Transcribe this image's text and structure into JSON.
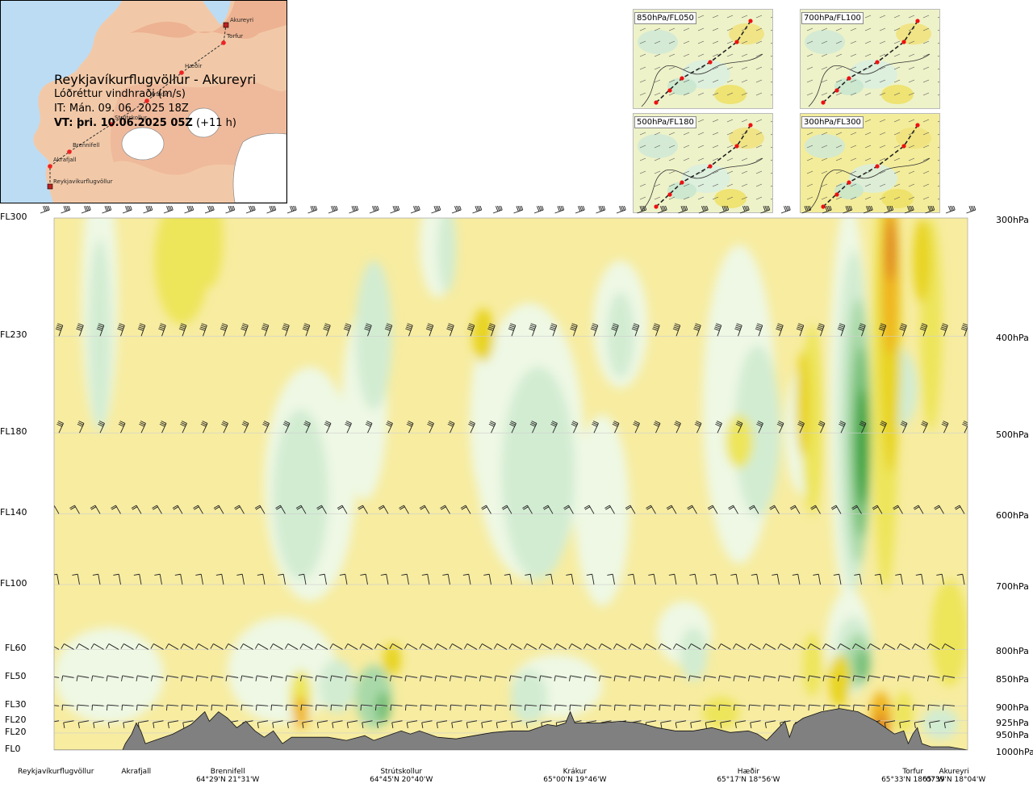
{
  "header": {
    "route_title": "Reykjavíkurflugvöllur - Akureyri",
    "field_title": "Lóðréttur vindhraði (m/s)",
    "init_time": "IT: Mán. 09. 06. 2025 18Z",
    "valid_prefix": "VT: þri. 10.06.2025 05Z",
    "valid_suffix": "(+11 h)"
  },
  "route_map": {
    "waypoints": [
      "Akureyri",
      "Torfur",
      "Hæðir",
      "Krákur",
      "Strútskollur",
      "Brennifell",
      "Akrafjall",
      "Reykjavíkurflugvöllur"
    ]
  },
  "level_maps": [
    {
      "label": "850hPa/FL050"
    },
    {
      "label": "700hPa/FL100"
    },
    {
      "label": "500hPa/FL180"
    },
    {
      "label": "300hPa/FL300"
    }
  ],
  "colors": {
    "yellow_light": "#f7eca0",
    "yellow": "#ede55a",
    "yellow_strong": "#e8d420",
    "orange": "#f0b520",
    "orange_dark": "#e08a25",
    "green_pale": "#eef8e4",
    "green_light": "#d2ecd2",
    "green": "#a9d9a8",
    "green_mid": "#77c078",
    "green_dark": "#3ea33c",
    "terrain": "#808080",
    "map_land": "#f2c9a8",
    "map_sea": "#bcdcf4"
  },
  "chart_data": {
    "type": "heatmap",
    "title": "Lóðréttur vindhraði (m/s)",
    "xlabel": "Reykjavíkurflugvöllur - Akureyri",
    "ylabel": "",
    "flight_levels": [
      "FL300",
      "FL230",
      "FL180",
      "FL140",
      "FL100",
      "FL60",
      "FL50",
      "FL30",
      "FL20",
      "FL20",
      "FL0"
    ],
    "pressure_levels": [
      "300hPa",
      "400hPa",
      "500hPa",
      "600hPa",
      "700hPa",
      "800hPa",
      "850hPa",
      "900hPa",
      "925hPa",
      "950hPa",
      "1000hPa"
    ],
    "level_fraction": [
      0.0,
      0.222,
      0.404,
      0.556,
      0.689,
      0.811,
      0.864,
      0.917,
      0.945,
      0.968,
      1.0
    ],
    "stations": [
      {
        "name": "Reykjavíkurflugvöllur",
        "coord": "",
        "dist": 0.0
      },
      {
        "name": "Akrafjall",
        "coord": "",
        "dist": 0.09
      },
      {
        "name": "Brennifell",
        "coord": "64°29'N 21°31'W",
        "dist": 0.19
      },
      {
        "name": "Strútskollur",
        "coord": "64°45'N 20°40'W",
        "dist": 0.38
      },
      {
        "name": "Krákur",
        "coord": "65°00'N 19°46'W",
        "dist": 0.57
      },
      {
        "name": "Hæðir",
        "coord": "65°17'N 18°56'W",
        "dist": 0.76
      },
      {
        "name": "Torfur",
        "coord": "65°33'N 18°07'W",
        "dist": 0.94
      },
      {
        "name": "Akureyri",
        "coord": "65°39'N 18°04'W",
        "dist": 0.985
      }
    ],
    "terrain_height_frac": [
      [
        0.0,
        0.0
      ],
      [
        0.075,
        0.0
      ],
      [
        0.078,
        0.02
      ],
      [
        0.085,
        0.05
      ],
      [
        0.09,
        0.085
      ],
      [
        0.095,
        0.06
      ],
      [
        0.1,
        0.02
      ],
      [
        0.11,
        0.03
      ],
      [
        0.13,
        0.05
      ],
      [
        0.15,
        0.08
      ],
      [
        0.165,
        0.12
      ],
      [
        0.17,
        0.09
      ],
      [
        0.18,
        0.12
      ],
      [
        0.19,
        0.1
      ],
      [
        0.2,
        0.07
      ],
      [
        0.21,
        0.09
      ],
      [
        0.22,
        0.06
      ],
      [
        0.23,
        0.04
      ],
      [
        0.24,
        0.06
      ],
      [
        0.25,
        0.02
      ],
      [
        0.26,
        0.04
      ],
      [
        0.28,
        0.04
      ],
      [
        0.3,
        0.04
      ],
      [
        0.32,
        0.03
      ],
      [
        0.34,
        0.045
      ],
      [
        0.35,
        0.03
      ],
      [
        0.36,
        0.04
      ],
      [
        0.38,
        0.06
      ],
      [
        0.39,
        0.05
      ],
      [
        0.4,
        0.06
      ],
      [
        0.42,
        0.04
      ],
      [
        0.44,
        0.035
      ],
      [
        0.46,
        0.045
      ],
      [
        0.48,
        0.055
      ],
      [
        0.5,
        0.06
      ],
      [
        0.52,
        0.06
      ],
      [
        0.54,
        0.08
      ],
      [
        0.55,
        0.075
      ],
      [
        0.56,
        0.085
      ],
      [
        0.565,
        0.12
      ],
      [
        0.57,
        0.085
      ],
      [
        0.6,
        0.085
      ],
      [
        0.62,
        0.09
      ],
      [
        0.64,
        0.085
      ],
      [
        0.66,
        0.07
      ],
      [
        0.68,
        0.06
      ],
      [
        0.7,
        0.06
      ],
      [
        0.72,
        0.07
      ],
      [
        0.74,
        0.055
      ],
      [
        0.76,
        0.06
      ],
      [
        0.77,
        0.05
      ],
      [
        0.78,
        0.03
      ],
      [
        0.79,
        0.06
      ],
      [
        0.8,
        0.09
      ],
      [
        0.805,
        0.04
      ],
      [
        0.81,
        0.08
      ],
      [
        0.82,
        0.1
      ],
      [
        0.84,
        0.12
      ],
      [
        0.86,
        0.13
      ],
      [
        0.88,
        0.12
      ],
      [
        0.9,
        0.09
      ],
      [
        0.92,
        0.05
      ],
      [
        0.93,
        0.06
      ],
      [
        0.935,
        0.02
      ],
      [
        0.94,
        0.05
      ],
      [
        0.945,
        0.07
      ],
      [
        0.95,
        0.02
      ],
      [
        0.96,
        0.01
      ],
      [
        0.98,
        0.01
      ],
      [
        0.99,
        0.005
      ],
      [
        1.0,
        0.0
      ]
    ],
    "contour_levels_m_s": [
      -1.0,
      -0.5,
      -0.25,
      -0.1,
      0.0,
      0.1,
      0.25,
      0.5,
      1.0
    ],
    "strong_features": [
      {
        "sign": "updraft",
        "dist": 0.88,
        "level_frac": 0.42,
        "magnitude": "strong"
      },
      {
        "sign": "downdraft",
        "dist": 0.91,
        "level_frac": 0.1,
        "magnitude": "moderate"
      },
      {
        "sign": "downdraft",
        "dist": 0.13,
        "level_frac": 0.05,
        "magnitude": "weak"
      }
    ]
  }
}
